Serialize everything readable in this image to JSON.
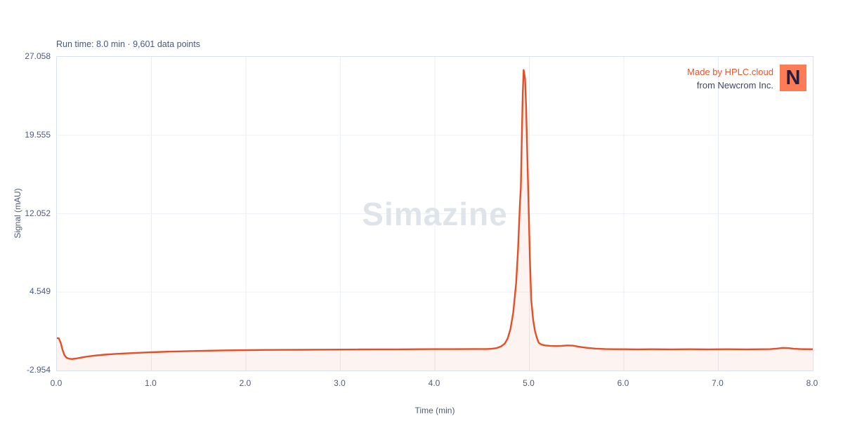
{
  "header": {
    "run_info": "Run time: 8.0 min · 9,601 data points"
  },
  "brand": {
    "line1": "Made by HPLC.cloud",
    "line2": "from Newcrom Inc.",
    "logo_letter": "N",
    "logo_bg": "#fb7c55",
    "logo_fg": "#2a1c40",
    "line1_color": "#f2512b",
    "line2_color": "#3b4668"
  },
  "watermark": "Simazine",
  "chart_data": {
    "type": "line",
    "title": "",
    "xlabel": "Time (min)",
    "ylabel": "Signal (mAU)",
    "xlim": [
      0,
      8
    ],
    "ylim": [
      -2.954,
      27.058
    ],
    "grid": true,
    "legend": "none",
    "xticks": {
      "values": [
        0,
        1,
        2,
        3,
        4,
        5,
        6,
        7,
        8
      ],
      "labels": [
        "0.0",
        "1.0",
        "2.0",
        "3.0",
        "4.0",
        "5.0",
        "6.0",
        "7.0",
        "8.0"
      ]
    },
    "yticks": {
      "values": [
        27.058,
        19.555,
        12.052,
        4.549,
        -2.954
      ],
      "labels": [
        "27.058",
        "19.555",
        "12.052",
        "4.549",
        "-2.954"
      ]
    },
    "peak_annotation": {
      "analyte": "Simazine",
      "retention_time_min": 4.93,
      "apex_height_mAU": 25.8
    },
    "series": [
      {
        "name": "Simazine signal",
        "color": "#e74e25",
        "fill_opacity": 0.07,
        "points": [
          [
            0.0,
            0.15
          ],
          [
            0.02,
            0.12
          ],
          [
            0.04,
            -0.3
          ],
          [
            0.06,
            -1.0
          ],
          [
            0.08,
            -1.5
          ],
          [
            0.1,
            -1.72
          ],
          [
            0.13,
            -1.83
          ],
          [
            0.16,
            -1.86
          ],
          [
            0.2,
            -1.81
          ],
          [
            0.25,
            -1.73
          ],
          [
            0.3,
            -1.65
          ],
          [
            0.4,
            -1.53
          ],
          [
            0.5,
            -1.44
          ],
          [
            0.6,
            -1.38
          ],
          [
            0.7,
            -1.33
          ],
          [
            0.8,
            -1.29
          ],
          [
            0.9,
            -1.25
          ],
          [
            1.0,
            -1.21
          ],
          [
            1.2,
            -1.15
          ],
          [
            1.4,
            -1.1
          ],
          [
            1.6,
            -1.06
          ],
          [
            1.8,
            -1.03
          ],
          [
            2.0,
            -1.01
          ],
          [
            2.2,
            -0.99
          ],
          [
            2.4,
            -0.98
          ],
          [
            2.6,
            -0.97
          ],
          [
            2.8,
            -0.96
          ],
          [
            3.0,
            -0.95
          ],
          [
            3.2,
            -0.94
          ],
          [
            3.4,
            -0.93
          ],
          [
            3.6,
            -0.93
          ],
          [
            3.8,
            -0.92
          ],
          [
            4.0,
            -0.91
          ],
          [
            4.2,
            -0.91
          ],
          [
            4.4,
            -0.9
          ],
          [
            4.55,
            -0.9
          ],
          [
            4.6,
            -0.88
          ],
          [
            4.65,
            -0.82
          ],
          [
            4.7,
            -0.66
          ],
          [
            4.74,
            -0.38
          ],
          [
            4.77,
            0.1
          ],
          [
            4.8,
            1.0
          ],
          [
            4.83,
            2.6
          ],
          [
            4.86,
            5.4
          ],
          [
            4.88,
            8.6
          ],
          [
            4.9,
            13.0
          ],
          [
            4.91,
            14.5
          ],
          [
            4.92,
            19.0
          ],
          [
            4.93,
            23.5
          ],
          [
            4.94,
            25.8
          ],
          [
            4.955,
            25.0
          ],
          [
            4.965,
            22.5
          ],
          [
            4.975,
            19.0
          ],
          [
            4.99,
            13.5
          ],
          [
            5.005,
            8.0
          ],
          [
            5.02,
            3.8
          ],
          [
            5.04,
            1.9
          ],
          [
            5.06,
            0.8
          ],
          [
            5.08,
            0.15
          ],
          [
            5.1,
            -0.3
          ],
          [
            5.13,
            -0.48
          ],
          [
            5.17,
            -0.56
          ],
          [
            5.22,
            -0.6
          ],
          [
            5.28,
            -0.62
          ],
          [
            5.34,
            -0.6
          ],
          [
            5.4,
            -0.56
          ],
          [
            5.46,
            -0.58
          ],
          [
            5.52,
            -0.68
          ],
          [
            5.6,
            -0.78
          ],
          [
            5.7,
            -0.86
          ],
          [
            5.8,
            -0.9
          ],
          [
            5.9,
            -0.92
          ],
          [
            6.0,
            -0.92
          ],
          [
            6.15,
            -0.93
          ],
          [
            6.3,
            -0.92
          ],
          [
            6.5,
            -0.93
          ],
          [
            6.7,
            -0.92
          ],
          [
            6.9,
            -0.93
          ],
          [
            7.1,
            -0.92
          ],
          [
            7.3,
            -0.93
          ],
          [
            7.45,
            -0.92
          ],
          [
            7.55,
            -0.91
          ],
          [
            7.62,
            -0.86
          ],
          [
            7.68,
            -0.79
          ],
          [
            7.74,
            -0.81
          ],
          [
            7.8,
            -0.88
          ],
          [
            7.88,
            -0.91
          ],
          [
            8.0,
            -0.92
          ]
        ]
      }
    ]
  }
}
